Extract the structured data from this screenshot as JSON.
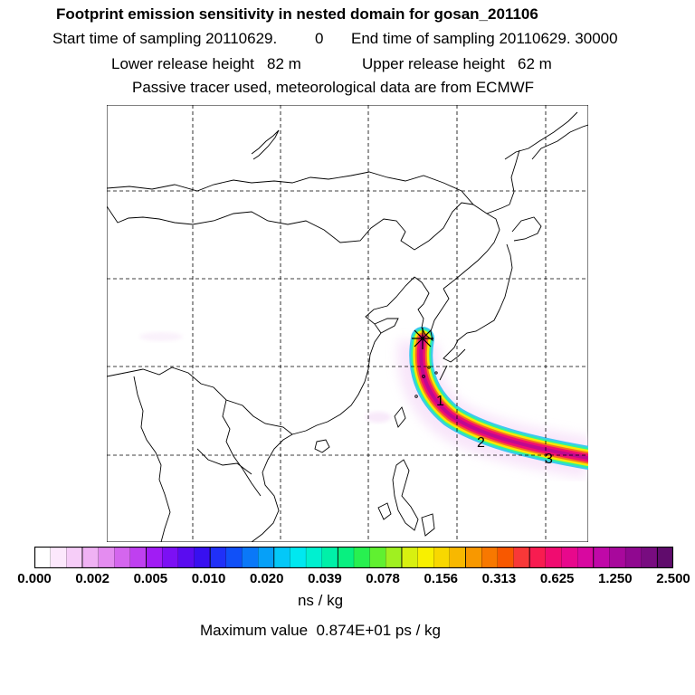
{
  "header": {
    "title": "Footprint emission sensitivity in nested domain for gosan_201106",
    "start_label": "Start time of sampling 20110629.",
    "start_value": "0",
    "end_label": "End time of sampling 20110629. 30000",
    "lower_label": "Lower release height   82 m",
    "upper_label": "Upper release height   62 m",
    "info": "Passive tracer used, meteorological data are from ECMWF"
  },
  "colorbar": {
    "tick_labels": [
      "0.000",
      "0.002",
      "0.005",
      "0.010",
      "0.020",
      "0.039",
      "0.078",
      "0.156",
      "0.313",
      "0.625",
      "1.250",
      "2.500"
    ],
    "colors": [
      "#ffffff",
      "#fce8fc",
      "#f6cdf8",
      "#f0b2f4",
      "#e48cf0",
      "#d466ee",
      "#bf40f0",
      "#a11cf4",
      "#7c10f4",
      "#5a0cf0",
      "#3810f0",
      "#2030f8",
      "#1050f8",
      "#0a78f8",
      "#06a0f8",
      "#04c8f8",
      "#00e8f0",
      "#00f0d0",
      "#00f0a8",
      "#08f080",
      "#28f050",
      "#60f030",
      "#a0f020",
      "#d8f010",
      "#f8f000",
      "#f8d800",
      "#f8b800",
      "#f89800",
      "#f87800",
      "#f85800",
      "#f83838",
      "#f81c50",
      "#f00c70",
      "#e8088c",
      "#d808a0",
      "#c008a8",
      "#a8089c",
      "#900890",
      "#780c80",
      "#600c6c"
    ],
    "units": "ns / kg"
  },
  "footer": {
    "max_value": "Maximum value  0.874E+01 ps / kg"
  },
  "map": {
    "trajectory_labels": [
      "1",
      "2",
      "3"
    ],
    "release_marker": "star-icon"
  }
}
